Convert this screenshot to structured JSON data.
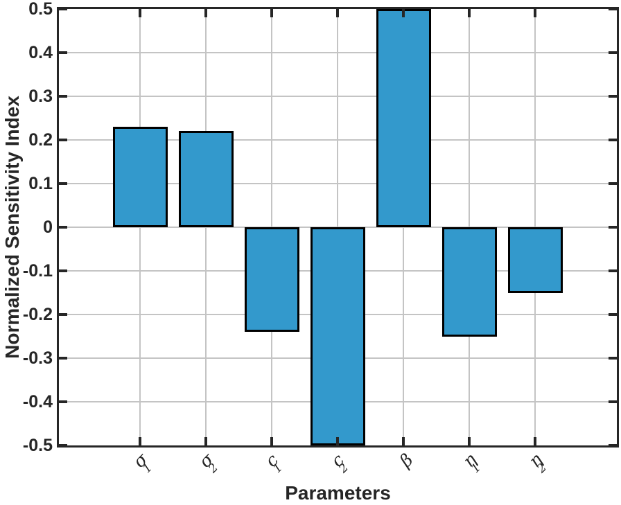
{
  "figure": {
    "background": "#ffffff"
  },
  "chart_data": {
    "type": "bar",
    "title": "",
    "xlabel": "Parameters",
    "ylabel": "Normalized Sensitivity Index",
    "categories": [
      "σ1",
      "σ2",
      "c1",
      "c2",
      "β",
      "η1",
      "η2"
    ],
    "category_parts": [
      {
        "key": "sigma1",
        "base": "σ",
        "sub": "1"
      },
      {
        "key": "sigma2",
        "base": "σ",
        "sub": "2"
      },
      {
        "key": "c1",
        "base": "c",
        "sub": "1"
      },
      {
        "key": "c2",
        "base": "c",
        "sub": "2"
      },
      {
        "key": "beta",
        "base": "β",
        "sub": ""
      },
      {
        "key": "eta1",
        "base": "η",
        "sub": "1"
      },
      {
        "key": "eta2",
        "base": "η",
        "sub": "2"
      }
    ],
    "values": [
      0.23,
      0.22,
      -0.24,
      -0.5,
      0.5,
      -0.25,
      -0.15
    ],
    "ylim": [
      -0.5,
      0.5
    ],
    "ytick_step": 0.1,
    "yticks": [
      0.5,
      0.4,
      0.3,
      0.2,
      0.1,
      0,
      -0.1,
      -0.2,
      -0.3,
      -0.4,
      -0.5
    ],
    "ytick_labels": [
      "0.5",
      "0.4",
      "0.3",
      "0.2",
      "0.1",
      "0",
      "-0.1",
      "-0.2",
      "-0.3",
      "-0.4",
      "-0.5"
    ],
    "grid": true,
    "legend": "none",
    "bar_fill_color": "#3399CC",
    "bar_edge_color": "#000000",
    "grid_color": "#C4C4C4",
    "axis_color": "#262626",
    "text_color": "#262626"
  }
}
